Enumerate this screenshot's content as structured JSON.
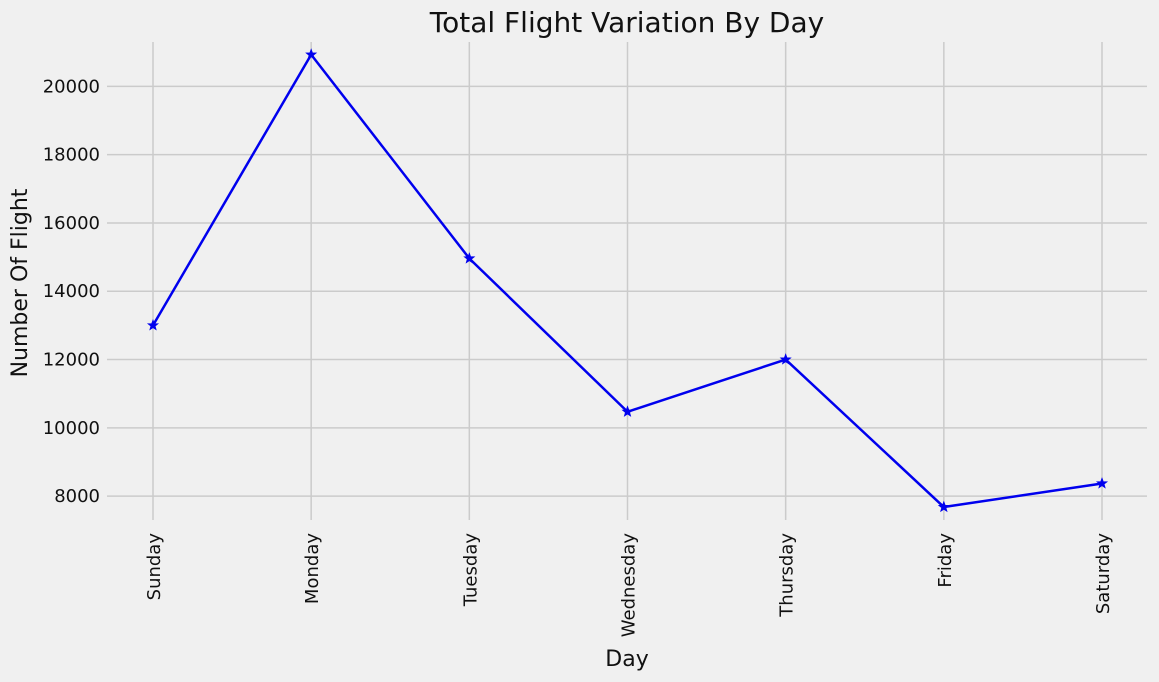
{
  "chart_data": {
    "type": "line",
    "title": "Total Flight Variation By Day",
    "xlabel": "Day",
    "ylabel": "Number Of Flight",
    "categories": [
      "Sunday",
      "Monday",
      "Tuesday",
      "Wednesday",
      "Thursday",
      "Friday",
      "Saturday"
    ],
    "series": [
      {
        "values": [
          13000,
          20930,
          14960,
          10470,
          12000,
          7680,
          8370
        ],
        "color": "#0000ee",
        "marker": "star"
      }
    ],
    "ylim": [
      7300,
      21300
    ],
    "yticks": [
      8000,
      10000,
      12000,
      14000,
      16000,
      18000,
      20000
    ],
    "ytick_labels": [
      "8000",
      "10000",
      "12000",
      "14000",
      "16000",
      "18000",
      "20000"
    ],
    "grid": true,
    "background_color": "#f0f0f0",
    "grid_color": "#cbcbcb"
  }
}
